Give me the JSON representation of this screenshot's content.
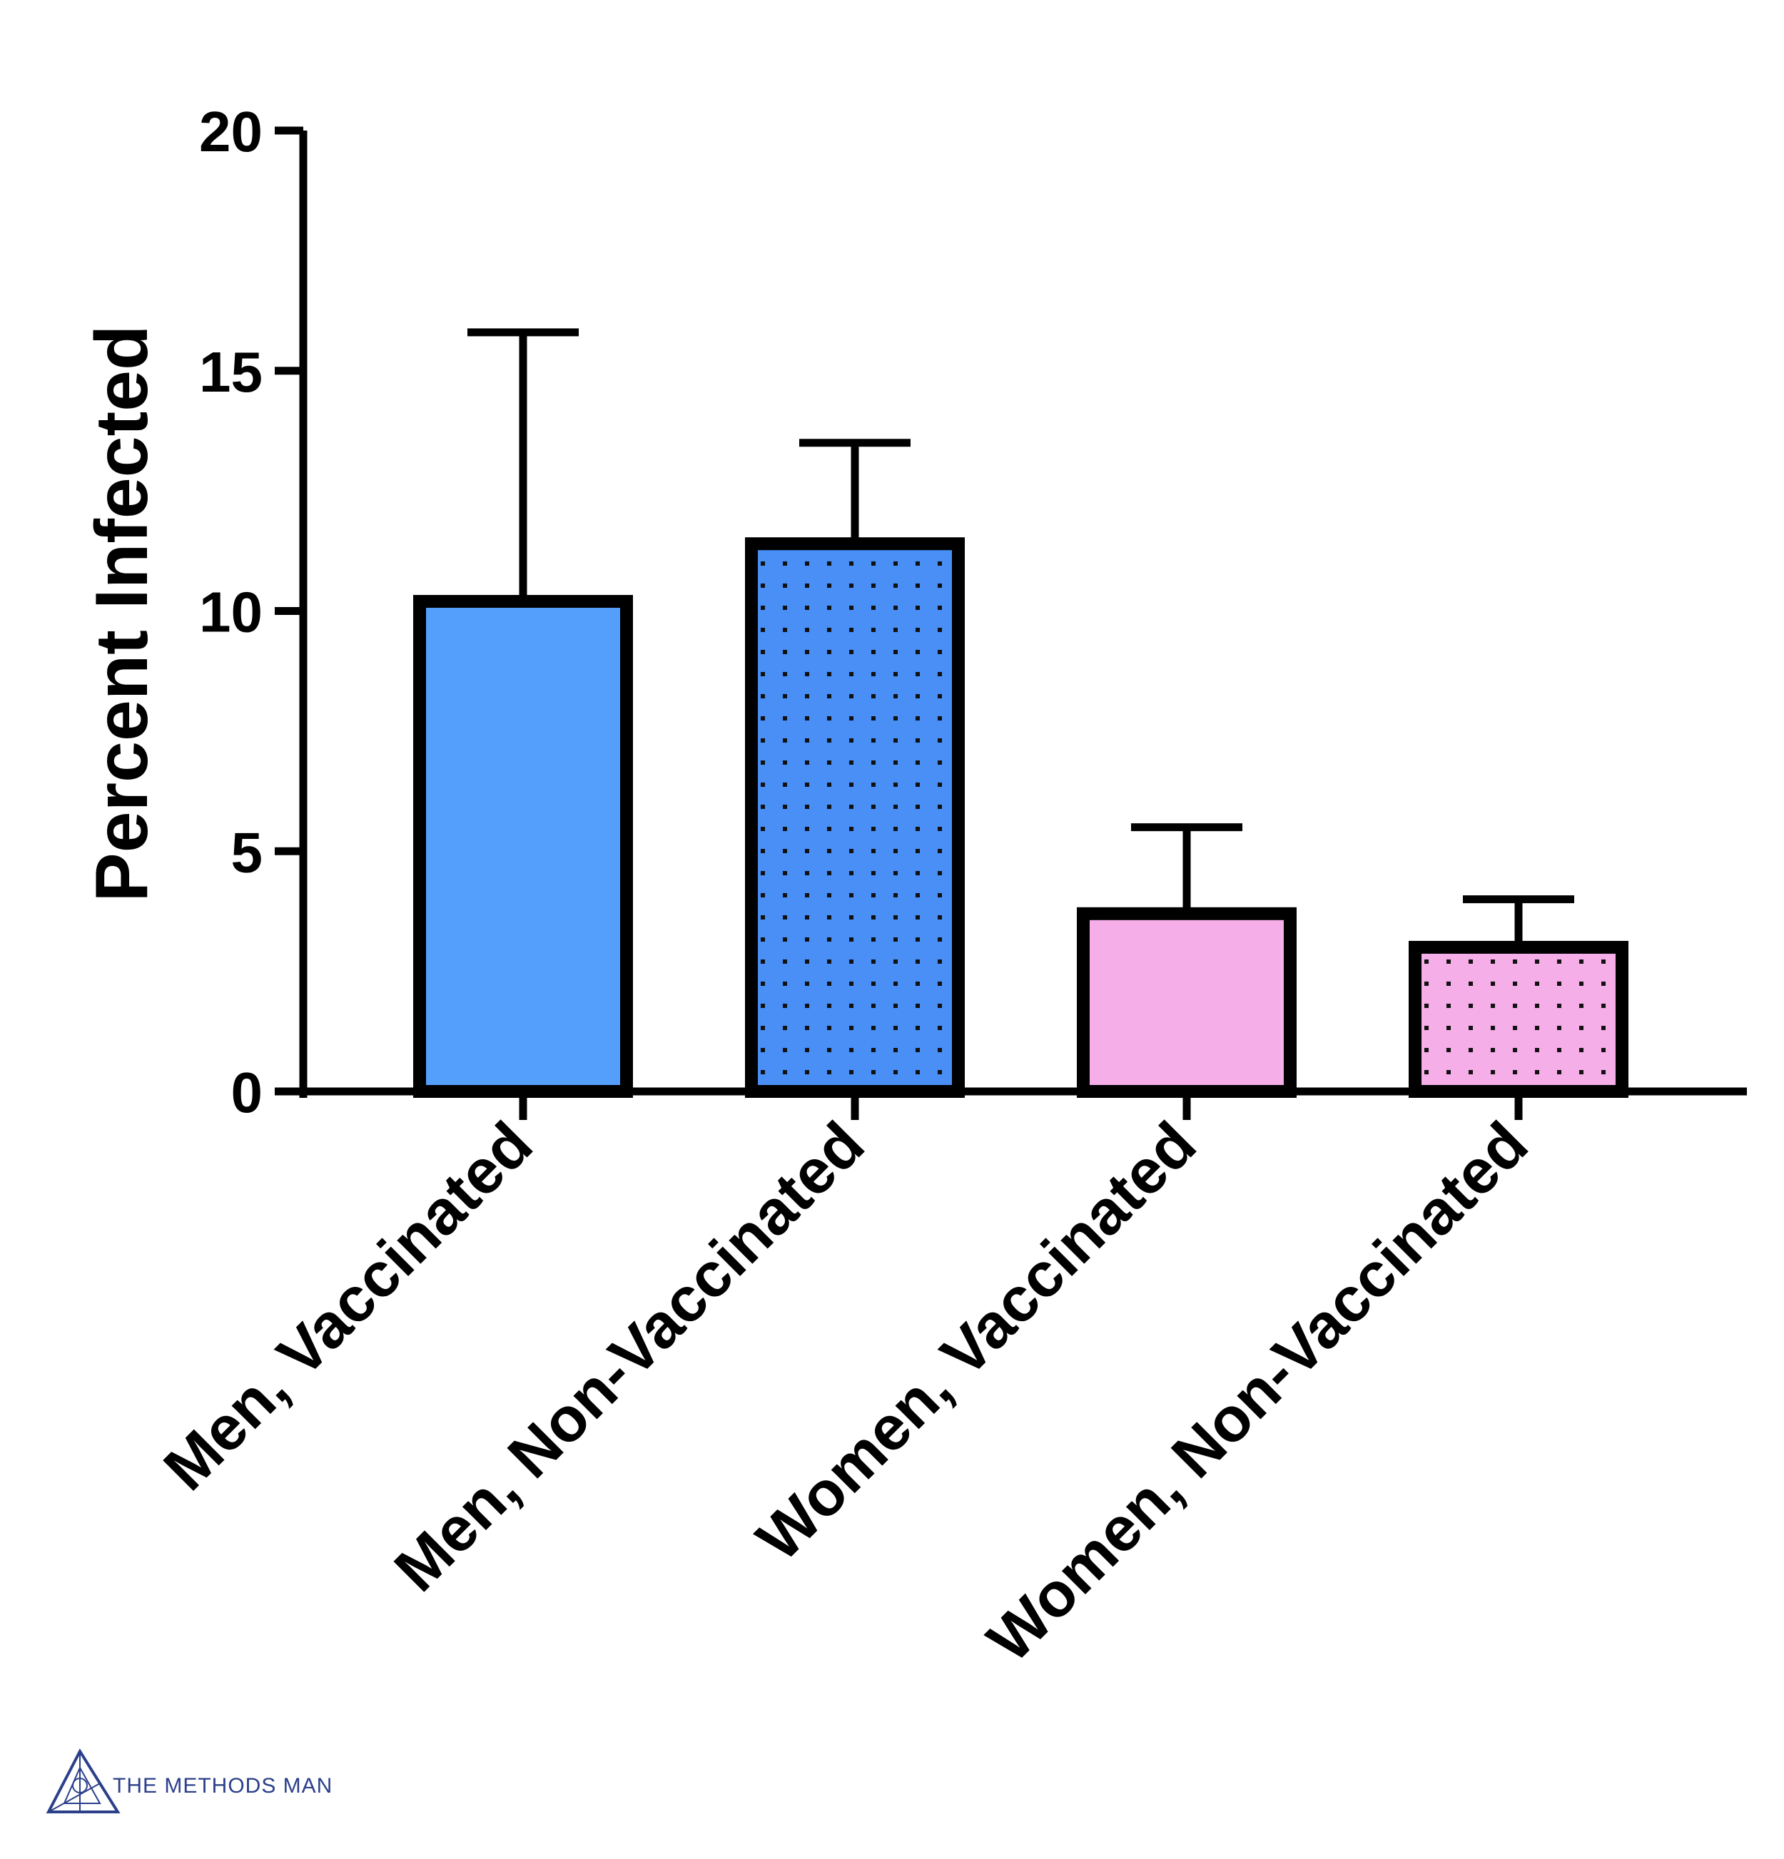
{
  "chart_data": {
    "type": "bar",
    "title": "",
    "xlabel": "",
    "ylabel": "Percent Infected",
    "ylim": [
      0,
      20
    ],
    "yticks": [
      0,
      5,
      10,
      15,
      20
    ],
    "grid": false,
    "categories": [
      "Men, Vaccinated",
      "Men, Non-Vaccinated",
      "Women, Vaccinated",
      "Women, Non-Vaccinated"
    ],
    "values": [
      10.2,
      11.4,
      3.7,
      3.0
    ],
    "error_upper": [
      15.8,
      13.5,
      5.5,
      4.0
    ],
    "bar_colors": [
      "#559ffc",
      "#4a8ff5",
      "#f5aee8",
      "#f5aee8"
    ],
    "bar_patterns": [
      "solid",
      "dotted",
      "solid",
      "dotted"
    ]
  },
  "watermark": {
    "text": "THE METHODS MAN",
    "color": "#2b3f8a"
  }
}
